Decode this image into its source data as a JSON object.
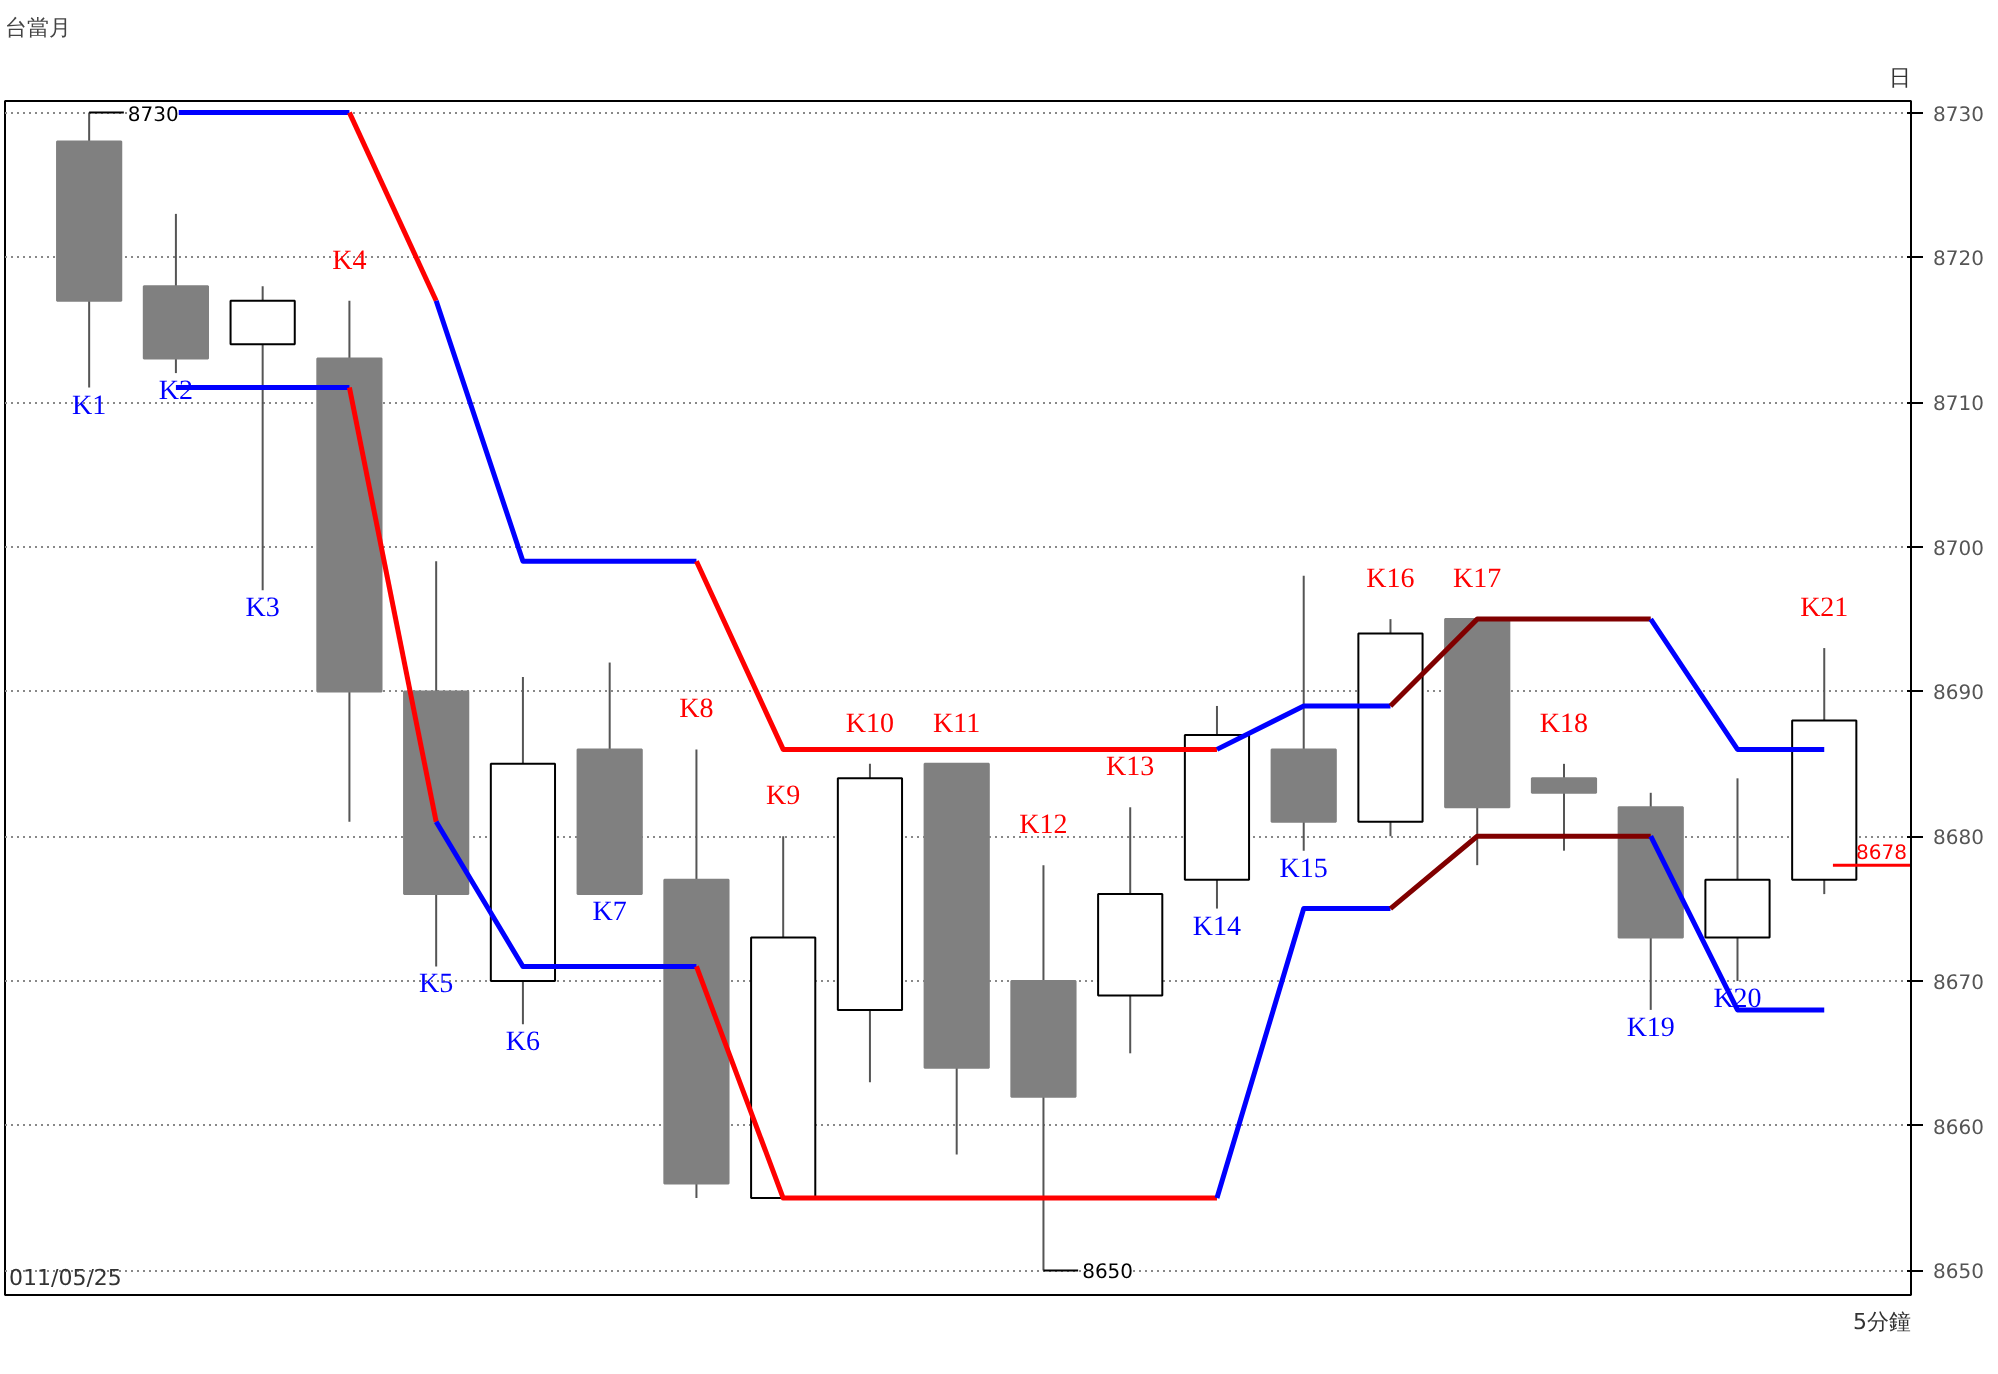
{
  "chart_data": {
    "type": "candlestick",
    "title": "台當月",
    "categories": [
      null,
      null,
      null,
      null,
      null,
      null,
      null,
      null,
      null,
      null,
      null,
      null,
      null,
      null,
      null,
      null,
      null,
      null,
      null,
      null,
      null
    ],
    "ylim": [
      8648.3,
      8730.8
    ],
    "yticks": [
      8650,
      8660,
      8670,
      8680,
      8690,
      8700,
      8710,
      8720,
      8730
    ],
    "tick_labels": "y",
    "grid": "y",
    "colors": [
      "#808080",
      "#808080",
      "#ffffff",
      "#808080",
      "#808080",
      "#ffffff",
      "#808080",
      "#808080",
      "#ffffff",
      "#ffffff",
      "#808080",
      "#808080",
      "#ffffff",
      "#ffffff",
      "#808080",
      "#ffffff",
      "#808080",
      "#808080",
      "#808080",
      "#ffffff",
      "#ffffff"
    ],
    "ohlc": [
      [
        8728,
        8730,
        8711,
        8717
      ],
      [
        8718,
        8723,
        8712,
        8713
      ],
      [
        8714,
        8718,
        8697,
        8717
      ],
      [
        8713,
        8717,
        8681,
        8690
      ],
      [
        8690,
        8699,
        8671,
        8676
      ],
      [
        8670,
        8691,
        8667,
        8685
      ],
      [
        8686,
        8692,
        8676,
        8676
      ],
      [
        8677,
        8686,
        8655,
        8656
      ],
      [
        8655,
        8680,
        8655,
        8673
      ],
      [
        8668,
        8685,
        8663,
        8684
      ],
      [
        8685,
        8685,
        8658,
        8664
      ],
      [
        8670,
        8678,
        8650,
        8662
      ],
      [
        8669,
        8682,
        8665,
        8676
      ],
      [
        8677,
        8689,
        8675,
        8687
      ],
      [
        8686,
        8698,
        8679,
        8681
      ],
      [
        8681,
        8695,
        8680,
        8694
      ],
      [
        8695,
        8695,
        8678,
        8682
      ],
      [
        8684,
        8685,
        8679,
        8683
      ],
      [
        8682,
        8683,
        8668,
        8673
      ],
      [
        8673,
        8684,
        8670,
        8677
      ],
      [
        8677,
        8693,
        8676,
        8688
      ]
    ],
    "series": [
      {
        "type": "line",
        "color": "#0000ff",
        "values": [
          null,
          8730,
          8730,
          8730,
          null,
          null,
          null,
          null,
          null,
          null,
          null,
          null,
          null,
          null,
          null,
          null,
          null,
          null,
          null,
          null,
          null
        ]
      },
      {
        "type": "line",
        "color": "#ff0000",
        "values": [
          null,
          null,
          null,
          8730,
          8717,
          null,
          null,
          null,
          null,
          null,
          null,
          null,
          null,
          null,
          null,
          null,
          null,
          null,
          null,
          null,
          null
        ]
      },
      {
        "type": "line",
        "color": "#0000ff",
        "values": [
          null,
          null,
          null,
          null,
          8717,
          8699,
          8699,
          8699,
          null,
          null,
          null,
          null,
          null,
          null,
          null,
          null,
          null,
          null,
          null,
          null,
          null
        ]
      },
      {
        "type": "line",
        "color": "#ff0000",
        "values": [
          null,
          null,
          null,
          null,
          null,
          null,
          null,
          8699,
          8686,
          8686,
          8686,
          8686,
          8686,
          8686,
          null,
          null,
          null,
          null,
          null,
          null,
          null
        ]
      },
      {
        "type": "line",
        "color": "#0000ff",
        "values": [
          null,
          null,
          null,
          null,
          null,
          null,
          null,
          null,
          null,
          null,
          null,
          null,
          null,
          8686,
          8689,
          8689,
          null,
          null,
          null,
          null,
          null
        ]
      },
      {
        "type": "line",
        "color": "#800000",
        "values": [
          null,
          null,
          null,
          null,
          null,
          null,
          null,
          null,
          null,
          null,
          null,
          null,
          null,
          null,
          null,
          8689,
          8695,
          8695,
          8695,
          null,
          null
        ]
      },
      {
        "type": "line",
        "color": "#0000ff",
        "values": [
          null,
          null,
          null,
          null,
          null,
          null,
          null,
          null,
          null,
          null,
          null,
          null,
          null,
          null,
          null,
          null,
          null,
          null,
          8695,
          8686,
          8686
        ]
      },
      {
        "type": "line",
        "color": "#0000ff",
        "values": [
          null,
          8711,
          8711,
          8711,
          null,
          null,
          null,
          null,
          null,
          null,
          null,
          null,
          null,
          null,
          null,
          null,
          null,
          null,
          null,
          null,
          null
        ]
      },
      {
        "type": "line",
        "color": "#ff0000",
        "values": [
          null,
          null,
          null,
          8711,
          8681,
          null,
          null,
          null,
          null,
          null,
          null,
          null,
          null,
          null,
          null,
          null,
          null,
          null,
          null,
          null,
          null
        ]
      },
      {
        "type": "line",
        "color": "#0000ff",
        "values": [
          null,
          null,
          null,
          null,
          8681,
          8671,
          8671,
          8671,
          null,
          null,
          null,
          null,
          null,
          null,
          null,
          null,
          null,
          null,
          null,
          null,
          null
        ]
      },
      {
        "type": "line",
        "color": "#ff0000",
        "values": [
          null,
          null,
          null,
          null,
          null,
          null,
          null,
          8671,
          8655,
          8655,
          8655,
          8655,
          8655,
          8655,
          null,
          null,
          null,
          null,
          null,
          null,
          null
        ]
      },
      {
        "type": "line",
        "color": "#0000ff",
        "values": [
          null,
          null,
          null,
          null,
          null,
          null,
          null,
          null,
          null,
          null,
          null,
          null,
          null,
          8655,
          8675,
          8675,
          null,
          null,
          null,
          null,
          null
        ]
      },
      {
        "type": "line",
        "color": "#800000",
        "values": [
          null,
          null,
          null,
          null,
          null,
          null,
          null,
          null,
          null,
          null,
          null,
          null,
          null,
          null,
          null,
          8675,
          8680,
          8680,
          8680,
          null,
          null
        ]
      },
      {
        "type": "line",
        "color": "#0000ff",
        "values": [
          null,
          null,
          null,
          null,
          null,
          null,
          null,
          null,
          null,
          null,
          null,
          null,
          null,
          null,
          null,
          null,
          null,
          null,
          8680,
          8668,
          8668
        ]
      }
    ],
    "ref_lines": [
      {
        "axis": "y",
        "value": 8678,
        "label": "8678",
        "color": "#ff0000"
      }
    ],
    "annotations": [
      "日",
      "5分鐘",
      "011/05/25",
      {
        "text": "K1",
        "y": 8711
      },
      {
        "text": "K2",
        "y": 8712
      },
      {
        "text": "K3",
        "y": 8697
      },
      {
        "text": "K4",
        "y": 8717
      },
      {
        "text": "K5",
        "y": 8671
      },
      {
        "text": "K6",
        "y": 8667
      },
      {
        "text": "K7",
        "y": 8676
      },
      {
        "text": "K8",
        "y": 8686
      },
      {
        "text": "K9",
        "y": 8680
      },
      {
        "text": "K10",
        "y": 8685
      },
      {
        "text": "K11",
        "y": 8685
      },
      {
        "text": "K12",
        "y": 8678
      },
      {
        "text": "K13",
        "y": 8682
      },
      {
        "text": "K14",
        "y": 8675
      },
      {
        "text": "K15",
        "y": 8679
      },
      {
        "text": "K16",
        "y": 8695
      },
      {
        "text": "K17",
        "y": 8695
      },
      {
        "text": "K18",
        "y": 8685
      },
      {
        "text": "K19",
        "y": 8668
      },
      {
        "text": "K20",
        "y": 8670
      },
      {
        "text": "K21",
        "y": 8693
      },
      {
        "text": "8730",
        "y": 8730
      },
      {
        "text": "8650",
        "y": 8650
      }
    ]
  }
}
